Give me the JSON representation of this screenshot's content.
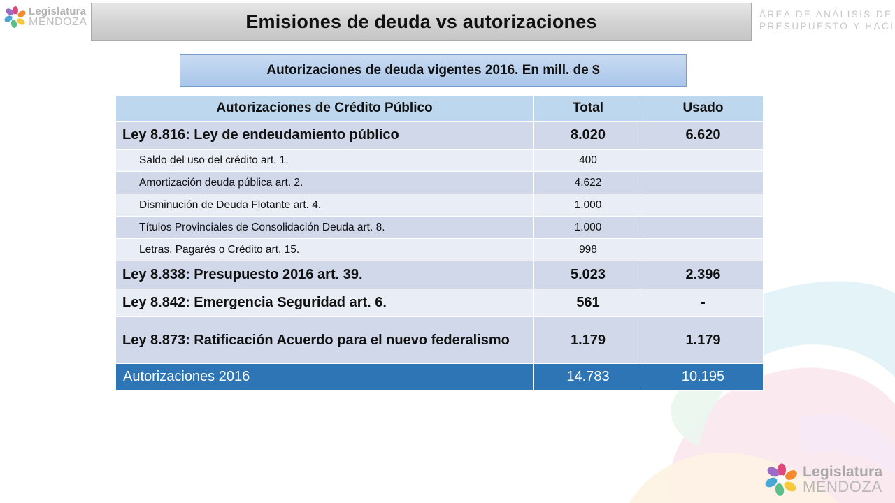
{
  "branding": {
    "logo_line1": "Legislatura",
    "logo_line2": "MENDOZA",
    "area_line1": "ÁREA DE ANÁLISIS DE",
    "area_line2": "PRESUPUESTO Y HACIENDA",
    "logo_colors": [
      "#e0467c",
      "#f28b30",
      "#f5c93a",
      "#5cbf8a",
      "#4aa8d8",
      "#9b6bc6"
    ]
  },
  "slide": {
    "title": "Emisiones de deuda vs autorizaciones",
    "subtitle": "Autorizaciones de deuda vigentes 2016. En mill. de $"
  },
  "table": {
    "headers": [
      "Autorizaciones de Crédito Público",
      "Total",
      "Usado"
    ],
    "rows": [
      {
        "label": "Ley 8.816: Ley de endeudamiento público",
        "total": "8.020",
        "used": "6.620"
      },
      {
        "label": "Saldo del uso del crédito art. 1.",
        "total": "400",
        "used": ""
      },
      {
        "label": "Amortización deuda pública art. 2.",
        "total": "4.622",
        "used": ""
      },
      {
        "label": "Disminución de Deuda Flotante art. 4.",
        "total": "1.000",
        "used": ""
      },
      {
        "label": "Títulos Provinciales de Consolidación Deuda art. 8.",
        "total": "1.000",
        "used": ""
      },
      {
        "label": "Letras, Pagarés o Crédito art. 15.",
        "total": "998",
        "used": ""
      },
      {
        "label": "Ley 8.838: Presupuesto 2016 art. 39.",
        "total": "5.023",
        "used": "2.396"
      },
      {
        "label": "Ley 8.842: Emergencia Seguridad art. 6.",
        "total": "561",
        "used": "-"
      },
      {
        "label": "Ley 8.873:  Ratificación Acuerdo para el nuevo federalismo",
        "total": "1.179",
        "used": "1.179"
      }
    ],
    "total_row": {
      "label": "Autorizaciones 2016",
      "total": "14.783",
      "used": "10.195"
    }
  }
}
